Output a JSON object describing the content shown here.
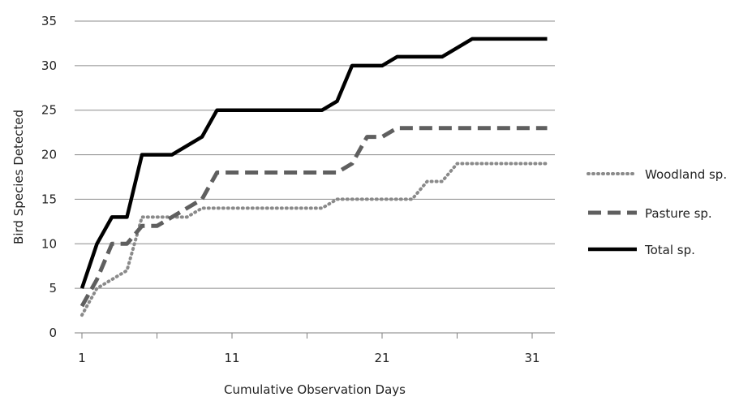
{
  "chart_data": {
    "type": "line",
    "xlabel": "Cumulative Observation Days",
    "ylabel": "Bird Species Detected",
    "xlim": [
      1,
      32
    ],
    "ylim": [
      0,
      35
    ],
    "xticks": [
      1,
      11,
      21,
      31
    ],
    "xminor_ticks": [
      6,
      16,
      26
    ],
    "yticks": [
      0,
      5,
      10,
      15,
      20,
      25,
      30,
      35
    ],
    "grid": "horizontal",
    "legend_position": "right",
    "x": [
      1,
      2,
      3,
      4,
      5,
      6,
      7,
      8,
      9,
      10,
      11,
      12,
      13,
      14,
      15,
      16,
      17,
      18,
      19,
      20,
      21,
      22,
      23,
      24,
      25,
      26,
      27,
      28,
      29,
      30,
      31,
      32
    ],
    "series": [
      {
        "name": "Woodland sp.",
        "style": "dotted",
        "color": "#8a8a8a",
        "values": [
          2,
          5,
          6,
          7,
          13,
          13,
          13,
          13,
          14,
          14,
          14,
          14,
          14,
          14,
          14,
          14,
          14,
          15,
          15,
          15,
          15,
          15,
          15,
          17,
          17,
          19,
          19,
          19,
          19,
          19,
          19,
          19
        ]
      },
      {
        "name": "Pasture sp.",
        "style": "dashed",
        "color": "#5f5f5f",
        "values": [
          3,
          6,
          10,
          10,
          12,
          12,
          13,
          14,
          15,
          18,
          18,
          18,
          18,
          18,
          18,
          18,
          18,
          18,
          19,
          22,
          22,
          23,
          23,
          23,
          23,
          23,
          23,
          23,
          23,
          23,
          23,
          23
        ]
      },
      {
        "name": "Total sp.",
        "style": "solid",
        "color": "#000000",
        "values": [
          5,
          10,
          13,
          13,
          20,
          20,
          20,
          21,
          22,
          25,
          25,
          25,
          25,
          25,
          25,
          25,
          25,
          26,
          30,
          30,
          30,
          31,
          31,
          31,
          31,
          32,
          33,
          33,
          33,
          33,
          33,
          33
        ]
      }
    ]
  }
}
